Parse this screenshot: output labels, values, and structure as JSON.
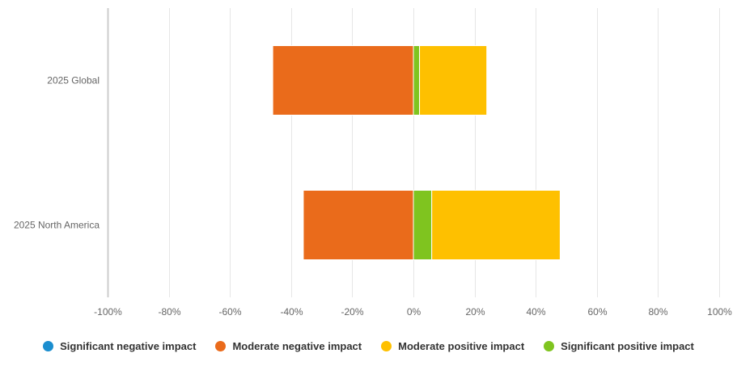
{
  "chart_data": {
    "type": "bar",
    "orientation": "horizontal",
    "stacked": true,
    "categories": [
      "2025 Global",
      "2025 North America"
    ],
    "series": [
      {
        "name": "Significant negative impact",
        "color": "#1b8ecf",
        "side": "negative",
        "values": [
          0,
          0
        ]
      },
      {
        "name": "Moderate negative impact",
        "color": "#ea6b1b",
        "side": "negative",
        "values": [
          -46,
          -36
        ]
      },
      {
        "name": "Moderate positive impact",
        "color": "#fec000",
        "side": "positive",
        "values": [
          22,
          42
        ]
      },
      {
        "name": "Significant positive impact",
        "color": "#7fc41f",
        "side": "positive",
        "values": [
          2,
          6
        ]
      }
    ],
    "xlim": [
      -100,
      100
    ],
    "xticks": [
      "-100%",
      "-80%",
      "-60%",
      "-40%",
      "-20%",
      "0%",
      "20%",
      "40%",
      "60%",
      "80%",
      "100%"
    ],
    "grid": true,
    "legend_position": "bottom",
    "title": "",
    "xlabel": "",
    "ylabel": ""
  }
}
